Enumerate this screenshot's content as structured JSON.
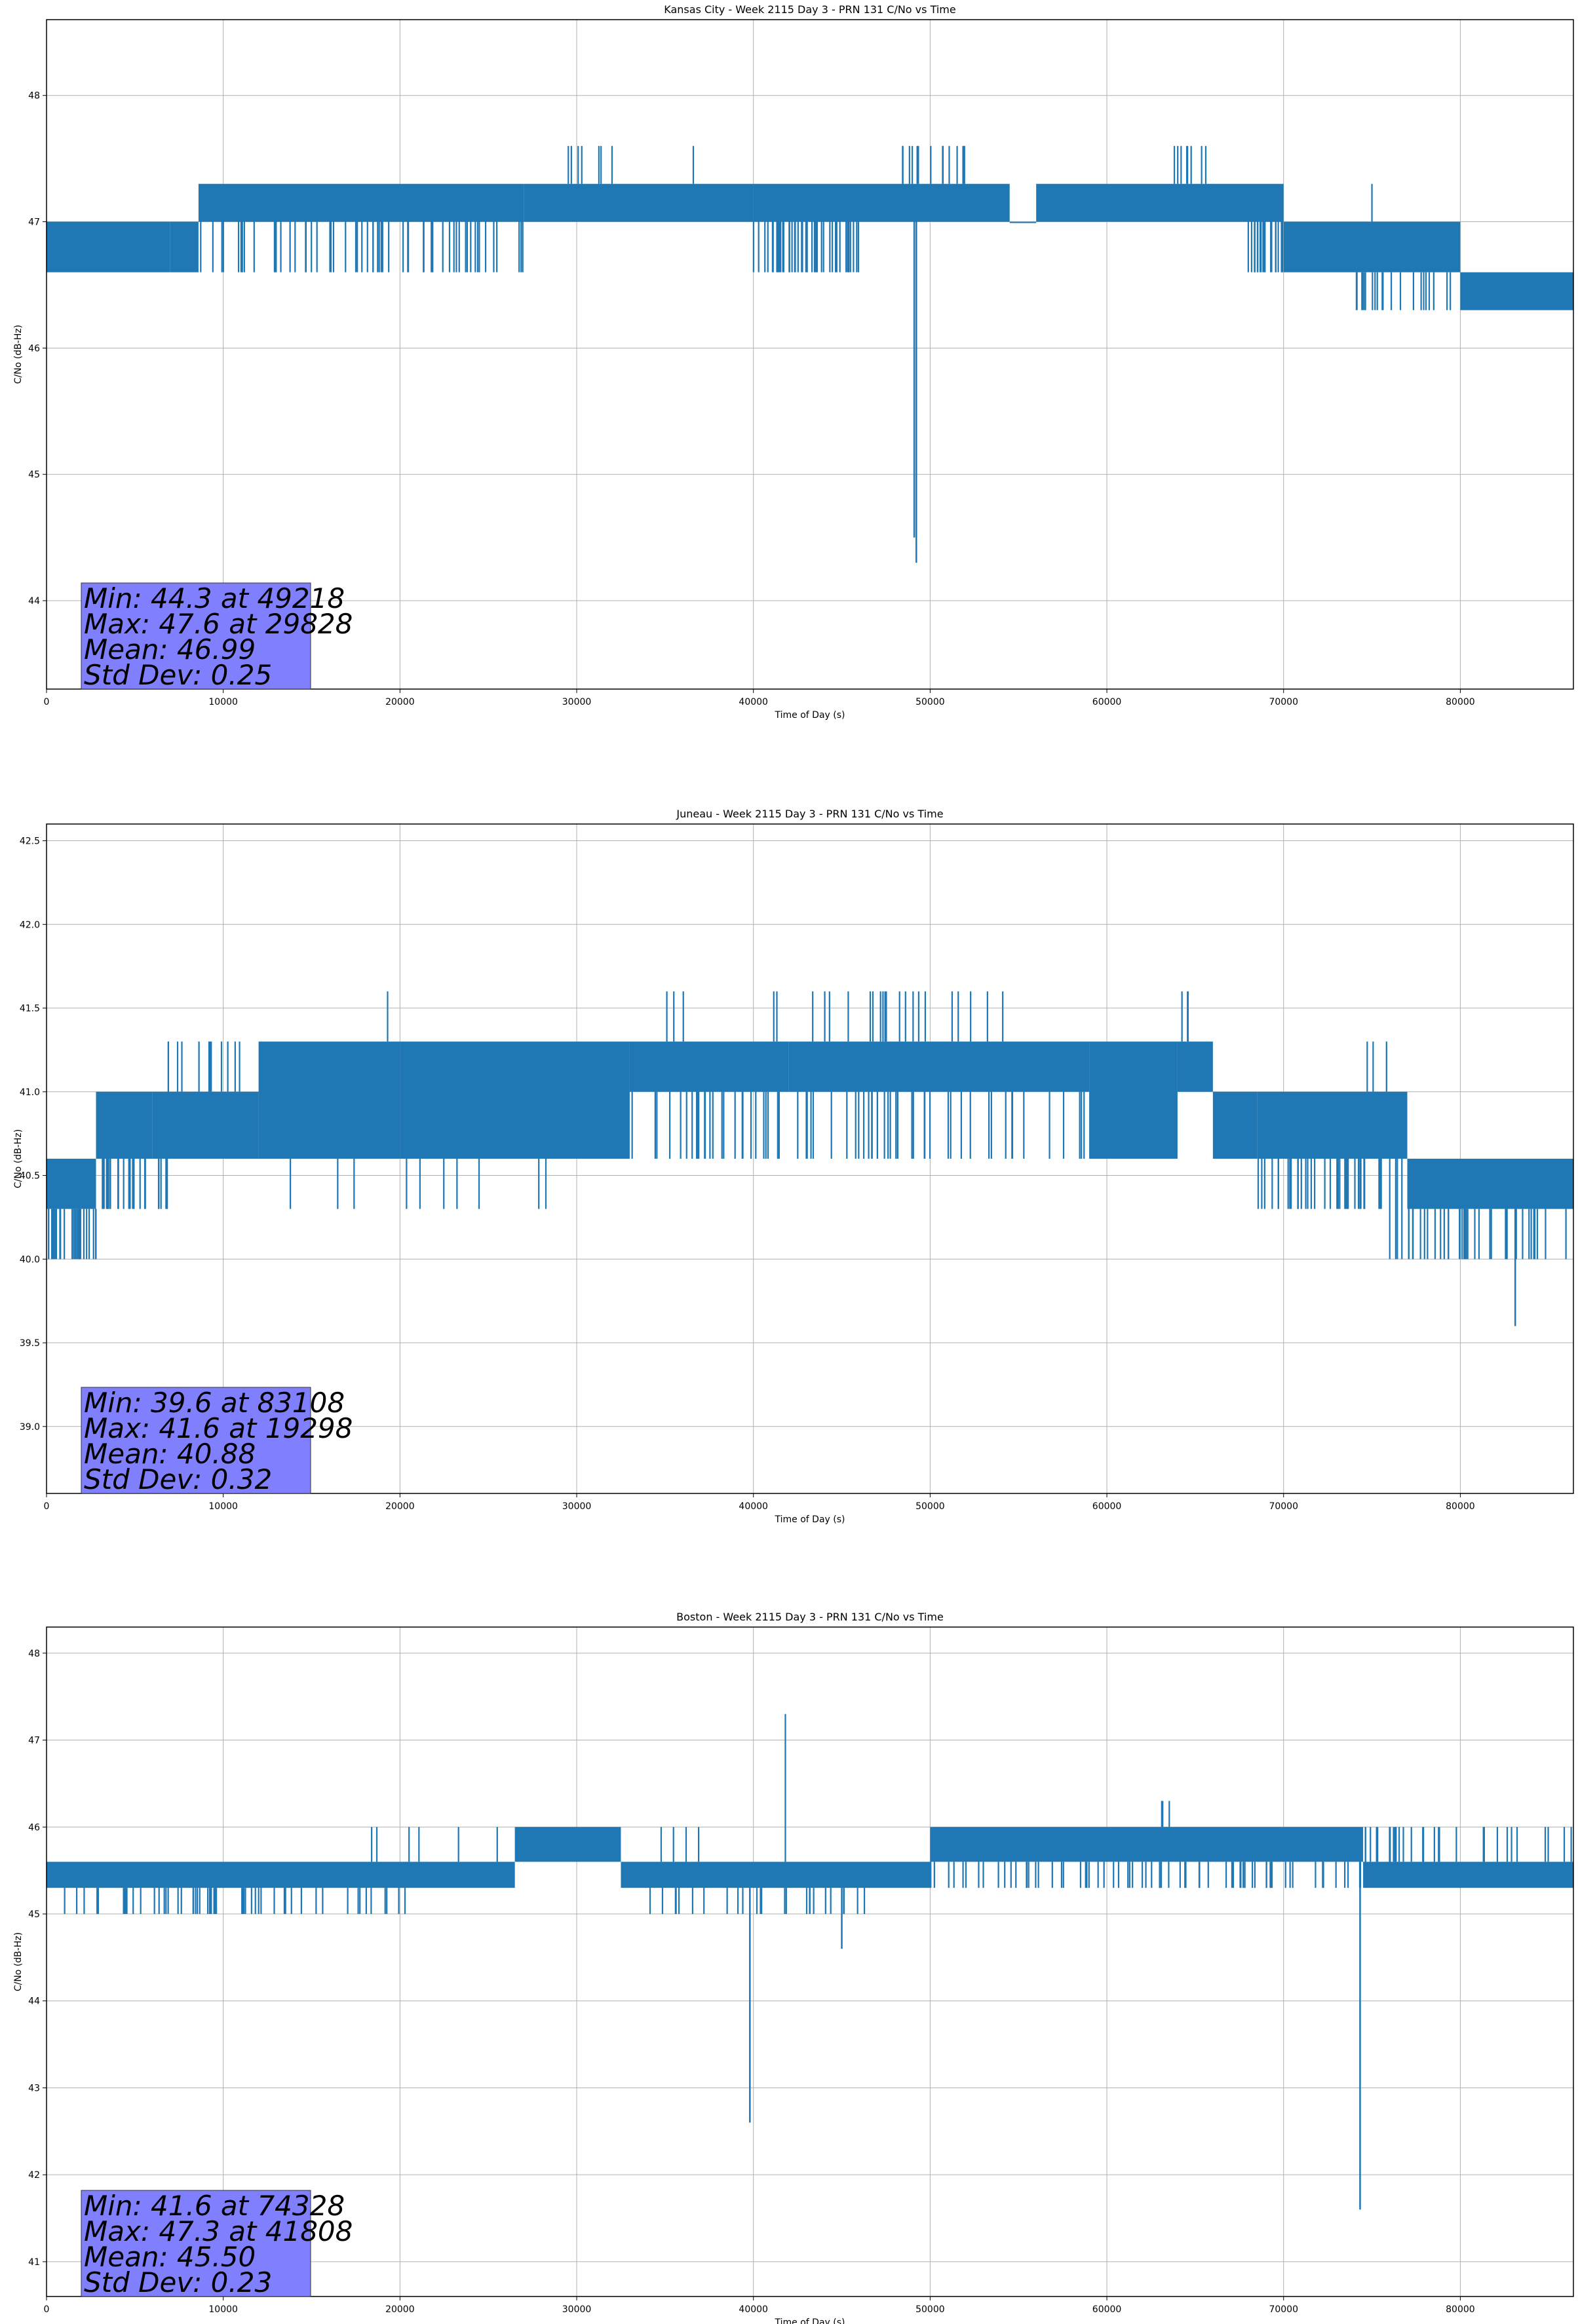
{
  "chart_data": [
    {
      "type": "line",
      "title": "Kansas City - Week 2115 Day 3 - PRN 131 C/No vs Time",
      "xlabel": "Time of Day (s)",
      "ylabel": "C/No (dB-Hz)",
      "xlim": [
        0,
        86400
      ],
      "ylim": [
        43.3,
        48.6
      ],
      "xticks": [
        0,
        10000,
        20000,
        30000,
        40000,
        50000,
        60000,
        70000,
        80000
      ],
      "yticks": [
        44,
        45,
        46,
        47,
        48
      ],
      "ytick_decimals": 0,
      "grid": true,
      "line_color": "#1f77b4",
      "bands": [
        {
          "x": [
            0,
            7000
          ],
          "y": [
            46.6,
            47.0
          ]
        },
        {
          "x": [
            7000,
            8600
          ],
          "y": [
            46.6,
            47.0
          ]
        },
        {
          "x": [
            8600,
            27000
          ],
          "y": [
            47.0,
            47.3
          ]
        },
        {
          "x": [
            27000,
            40000
          ],
          "y": [
            47.0,
            47.3
          ]
        },
        {
          "x": [
            40000,
            46000
          ],
          "y": [
            47.0,
            47.3
          ]
        },
        {
          "x": [
            46000,
            54500
          ],
          "y": [
            47.0,
            47.3
          ]
        },
        {
          "x": [
            54500,
            56000
          ],
          "y": [
            47.0,
            47.0
          ]
        },
        {
          "x": [
            56000,
            70000
          ],
          "y": [
            47.0,
            47.3
          ]
        },
        {
          "x": [
            70000,
            80000
          ],
          "y": [
            46.6,
            47.0
          ]
        },
        {
          "x": [
            80000,
            86400
          ],
          "y": [
            46.3,
            46.6
          ]
        }
      ],
      "dips": [
        {
          "x": [
            7000,
            27000
          ],
          "to": 46.6,
          "n": 70
        },
        {
          "x": [
            27000,
            40000
          ],
          "to": 47.0,
          "n": 30
        },
        {
          "x": [
            40000,
            46000
          ],
          "to": 46.6,
          "n": 45
        },
        {
          "x": [
            56000,
            70000
          ],
          "to": 47.0,
          "n": 55
        },
        {
          "x": [
            68000,
            74000
          ],
          "to": 46.6,
          "n": 40
        },
        {
          "x": [
            74000,
            86400
          ],
          "to": 46.3,
          "n": 60
        }
      ],
      "spikes": [
        {
          "x": [
            8800,
            27000
          ],
          "to": 47.3,
          "n": 20
        },
        {
          "x": [
            29500,
            31500
          ],
          "to": 47.6,
          "n": 6
        },
        {
          "x": [
            32000,
            32200
          ],
          "to": 47.6,
          "n": 1
        },
        {
          "x": [
            36600,
            36700
          ],
          "to": 47.6,
          "n": 1
        },
        {
          "x": [
            48000,
            52000
          ],
          "to": 47.6,
          "n": 14
        },
        {
          "x": [
            61000,
            66500
          ],
          "to": 47.6,
          "n": 8
        },
        {
          "x": [
            75000,
            75100
          ],
          "to": 47.3,
          "n": 1
        }
      ],
      "events": [
        {
          "x": 49218,
          "y": 44.3,
          "base": 47.0,
          "label": "min"
        },
        {
          "x": 49100,
          "y": 44.5,
          "base": 47.0,
          "label": ""
        }
      ],
      "stats": {
        "min": "Min: 44.3 at 49218",
        "max": "Max: 47.6 at 29828",
        "mean": "Mean: 46.99",
        "std": "Std Dev: 0.25"
      }
    },
    {
      "type": "line",
      "title": "Juneau - Week 2115 Day 3 - PRN 131 C/No vs Time",
      "xlabel": "Time of Day (s)",
      "ylabel": "C/No (dB-Hz)",
      "xlim": [
        0,
        86400
      ],
      "ylim": [
        38.6,
        42.6
      ],
      "xticks": [
        0,
        10000,
        20000,
        30000,
        40000,
        50000,
        60000,
        70000,
        80000
      ],
      "yticks": [
        39.0,
        39.5,
        40.0,
        40.5,
        41.0,
        41.5,
        42.0,
        42.5
      ],
      "ytick_decimals": 1,
      "grid": true,
      "line_color": "#1f77b4",
      "bands": [
        {
          "x": [
            0,
            2800
          ],
          "y": [
            40.3,
            40.6
          ]
        },
        {
          "x": [
            2800,
            6000
          ],
          "y": [
            40.6,
            41.0
          ]
        },
        {
          "x": [
            6000,
            12000
          ],
          "y": [
            40.6,
            41.0
          ]
        },
        {
          "x": [
            12000,
            20000
          ],
          "y": [
            40.6,
            41.3
          ]
        },
        {
          "x": [
            20000,
            33000
          ],
          "y": [
            40.6,
            41.3
          ]
        },
        {
          "x": [
            33000,
            42000
          ],
          "y": [
            41.0,
            41.3
          ]
        },
        {
          "x": [
            42000,
            59000
          ],
          "y": [
            41.0,
            41.3
          ]
        },
        {
          "x": [
            59000,
            64000
          ],
          "y": [
            40.6,
            41.3
          ]
        },
        {
          "x": [
            64000,
            66000
          ],
          "y": [
            41.0,
            41.3
          ]
        },
        {
          "x": [
            66000,
            68500
          ],
          "y": [
            40.6,
            41.0
          ]
        },
        {
          "x": [
            68500,
            77000
          ],
          "y": [
            40.6,
            41.0
          ]
        },
        {
          "x": [
            77000,
            86400
          ],
          "y": [
            40.3,
            40.6
          ]
        }
      ],
      "dips": [
        {
          "x": [
            0,
            2800
          ],
          "to": 40.0,
          "n": 25
        },
        {
          "x": [
            2800,
            7000
          ],
          "to": 40.3,
          "n": 25
        },
        {
          "x": [
            7000,
            40000
          ],
          "to": 40.6,
          "n": 110
        },
        {
          "x": [
            10000,
            30000
          ],
          "to": 40.3,
          "n": 10
        },
        {
          "x": [
            40000,
            60000
          ],
          "to": 40.6,
          "n": 50
        },
        {
          "x": [
            68500,
            76000
          ],
          "to": 40.3,
          "n": 35
        },
        {
          "x": [
            76000,
            86400
          ],
          "to": 40.0,
          "n": 40
        }
      ],
      "spikes": [
        {
          "x": [
            6600,
            12000
          ],
          "to": 41.3,
          "n": 12
        },
        {
          "x": [
            19300,
            19400
          ],
          "to": 41.6,
          "n": 1
        },
        {
          "x": [
            35000,
            37000
          ],
          "to": 41.6,
          "n": 3
        },
        {
          "x": [
            41000,
            57000
          ],
          "to": 41.6,
          "n": 22
        },
        {
          "x": [
            64000,
            65000
          ],
          "to": 41.6,
          "n": 3
        },
        {
          "x": [
            74000,
            76000
          ],
          "to": 41.3,
          "n": 3
        },
        {
          "x": [
            82500,
            86400
          ],
          "to": 40.6,
          "n": 10
        }
      ],
      "events": [
        {
          "x": 83108,
          "y": 39.6,
          "base": 40.3,
          "label": "min"
        }
      ],
      "stats": {
        "min": "Min: 39.6 at 83108",
        "max": "Max: 41.6 at 19298",
        "mean": "Mean: 40.88",
        "std": "Std Dev: 0.32"
      }
    },
    {
      "type": "line",
      "title": "Boston - Week 2115 Day 3 - PRN 131 C/No vs Time",
      "xlabel": "Time of Day (s)",
      "ylabel": "C/No (dB-Hz)",
      "xlim": [
        0,
        86400
      ],
      "ylim": [
        40.6,
        48.3
      ],
      "xticks": [
        0,
        10000,
        20000,
        30000,
        40000,
        50000,
        60000,
        70000,
        80000
      ],
      "yticks": [
        41,
        42,
        43,
        44,
        45,
        46,
        47,
        48
      ],
      "ytick_decimals": 0,
      "grid": true,
      "line_color": "#1f77b4",
      "bands": [
        {
          "x": [
            0,
            26500
          ],
          "y": [
            45.3,
            45.6
          ]
        },
        {
          "x": [
            26500,
            32500
          ],
          "y": [
            45.6,
            46.0
          ]
        },
        {
          "x": [
            32500,
            50000
          ],
          "y": [
            45.3,
            45.6
          ]
        },
        {
          "x": [
            50000,
            74500
          ],
          "y": [
            45.6,
            46.0
          ]
        },
        {
          "x": [
            74500,
            86400
          ],
          "y": [
            45.3,
            45.6
          ]
        }
      ],
      "dips": [
        {
          "x": [
            1000,
            10000
          ],
          "to": 45.0,
          "n": 30
        },
        {
          "x": [
            10000,
            21500
          ],
          "to": 45.0,
          "n": 25
        },
        {
          "x": [
            21500,
            26500
          ],
          "to": 45.3,
          "n": 10
        },
        {
          "x": [
            26500,
            32500
          ],
          "to": 45.6,
          "n": 20
        },
        {
          "x": [
            33000,
            47500
          ],
          "to": 45.0,
          "n": 25
        },
        {
          "x": [
            50000,
            74500
          ],
          "to": 45.3,
          "n": 70
        },
        {
          "x": [
            74500,
            82500
          ],
          "to": 45.3,
          "n": 10
        }
      ],
      "spikes": [
        {
          "x": [
            6000,
            26500
          ],
          "to": 45.6,
          "n": 25
        },
        {
          "x": [
            17500,
            26500
          ],
          "to": 46.0,
          "n": 6
        },
        {
          "x": [
            32500,
            37500
          ],
          "to": 46.0,
          "n": 4
        },
        {
          "x": [
            41808,
            41900
          ],
          "to": 47.3,
          "n": 1
        },
        {
          "x": [
            63000,
            64000
          ],
          "to": 46.3,
          "n": 3
        },
        {
          "x": [
            74500,
            86400
          ],
          "to": 46.0,
          "n": 30
        }
      ],
      "events": [
        {
          "x": 39800,
          "y": 42.6,
          "base": 45.3,
          "label": ""
        },
        {
          "x": 45000,
          "y": 44.6,
          "base": 45.3,
          "label": ""
        },
        {
          "x": 74328,
          "y": 41.6,
          "base": 45.6,
          "label": "min"
        }
      ],
      "stats": {
        "min": "Min: 41.6 at 74328",
        "max": "Max: 47.3 at 41808",
        "mean": "Mean: 45.50",
        "std": "Std Dev: 0.23"
      }
    }
  ],
  "colors": {
    "line": "#1f77b4",
    "grid": "#b0b0b0",
    "stats_box": "#8080ff"
  }
}
